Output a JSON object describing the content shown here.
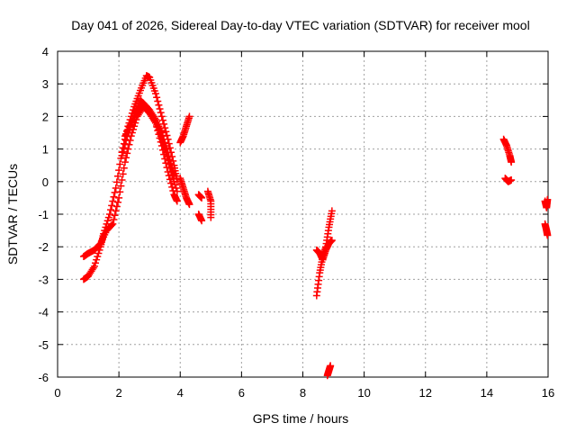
{
  "chart_data": {
    "type": "scatter",
    "title": "Day 041 of 2026, Sidereal Day-to-day VTEC variation (SDTVAR) for receiver mool",
    "xlabel": "GPS time / hours",
    "ylabel": "SDTVAR / TECUs",
    "xlim": [
      0,
      16
    ],
    "ylim": [
      -6,
      4
    ],
    "xticks": [
      0,
      2,
      4,
      6,
      8,
      10,
      12,
      14,
      16
    ],
    "yticks": [
      -6,
      -5,
      -4,
      -3,
      -2,
      -1,
      0,
      1,
      2,
      3,
      4
    ],
    "grid": true,
    "marker": "+",
    "color": "#ff0000",
    "segments": [
      {
        "x": [
          0.85,
          1.0,
          1.2,
          1.4,
          1.5,
          1.7,
          1.9,
          2.1,
          2.3,
          2.5,
          2.7,
          2.9,
          3.0,
          3.2,
          3.4,
          3.6,
          3.8,
          3.9
        ],
        "y": [
          -3.0,
          -2.9,
          -2.6,
          -2.0,
          -1.6,
          -1.0,
          -0.2,
          0.9,
          1.7,
          2.3,
          2.8,
          3.25,
          3.2,
          2.7,
          2.0,
          1.3,
          0.5,
          0.0
        ]
      },
      {
        "x": [
          0.85,
          1.0,
          1.2,
          1.4,
          1.6,
          1.8,
          2.0,
          2.2,
          2.4,
          2.6,
          2.8,
          3.0,
          3.2,
          3.4,
          3.6,
          3.8,
          3.9
        ],
        "y": [
          -2.3,
          -2.2,
          -2.1,
          -1.9,
          -1.5,
          -1.3,
          -0.5,
          0.6,
          1.4,
          2.0,
          2.3,
          2.1,
          1.8,
          1.1,
          0.3,
          -0.4,
          -0.6
        ]
      },
      {
        "x": [
          2.1,
          2.3,
          2.5,
          2.7,
          2.9,
          3.1,
          3.3,
          3.5,
          3.7,
          3.9
        ],
        "y": [
          0.8,
          1.5,
          2.0,
          2.5,
          2.3,
          2.0,
          1.6,
          1.0,
          0.3,
          -0.3
        ]
      },
      {
        "x": [
          2.2,
          2.4,
          2.6,
          2.8,
          3.0,
          3.2,
          3.4,
          3.6,
          3.8
        ],
        "y": [
          1.4,
          1.8,
          2.2,
          2.4,
          2.2,
          1.9,
          1.5,
          0.9,
          0.2
        ]
      },
      {
        "x": [
          4.0,
          4.1,
          4.2,
          4.3
        ],
        "y": [
          1.2,
          1.4,
          1.7,
          2.0
        ]
      },
      {
        "x": [
          4.0,
          4.1,
          4.2,
          4.3
        ],
        "y": [
          0.1,
          -0.2,
          -0.5,
          -0.7
        ]
      },
      {
        "x": [
          4.6,
          4.7
        ],
        "y": [
          -0.4,
          -0.5
        ]
      },
      {
        "x": [
          4.6,
          4.7
        ],
        "y": [
          -1.0,
          -1.2
        ]
      },
      {
        "x": [
          4.9,
          5.0,
          5.0
        ],
        "y": [
          -0.3,
          -0.6,
          -1.1
        ]
      },
      {
        "x": [
          8.45,
          8.55,
          8.65,
          8.75,
          8.85,
          8.95
        ],
        "y": [
          -3.5,
          -2.8,
          -2.3,
          -2.0,
          -1.4,
          -0.9
        ]
      },
      {
        "x": [
          8.45,
          8.55,
          8.65,
          8.75,
          8.85,
          8.95
        ],
        "y": [
          -2.1,
          -2.2,
          -2.4,
          -2.1,
          -1.9,
          -1.8
        ]
      },
      {
        "x": [
          8.8,
          8.85,
          8.9
        ],
        "y": [
          -5.95,
          -5.8,
          -5.65
        ]
      },
      {
        "x": [
          14.55,
          14.65,
          14.75,
          14.8
        ],
        "y": [
          1.3,
          1.1,
          0.8,
          0.6
        ]
      },
      {
        "x": [
          14.6,
          14.7,
          14.8
        ],
        "y": [
          0.1,
          0.0,
          0.05
        ]
      },
      {
        "x": [
          15.9,
          15.95,
          15.98
        ],
        "y": [
          -0.6,
          -0.8,
          -0.55
        ]
      },
      {
        "x": [
          15.9,
          15.95,
          15.98
        ],
        "y": [
          -1.3,
          -1.5,
          -1.65
        ]
      }
    ]
  }
}
